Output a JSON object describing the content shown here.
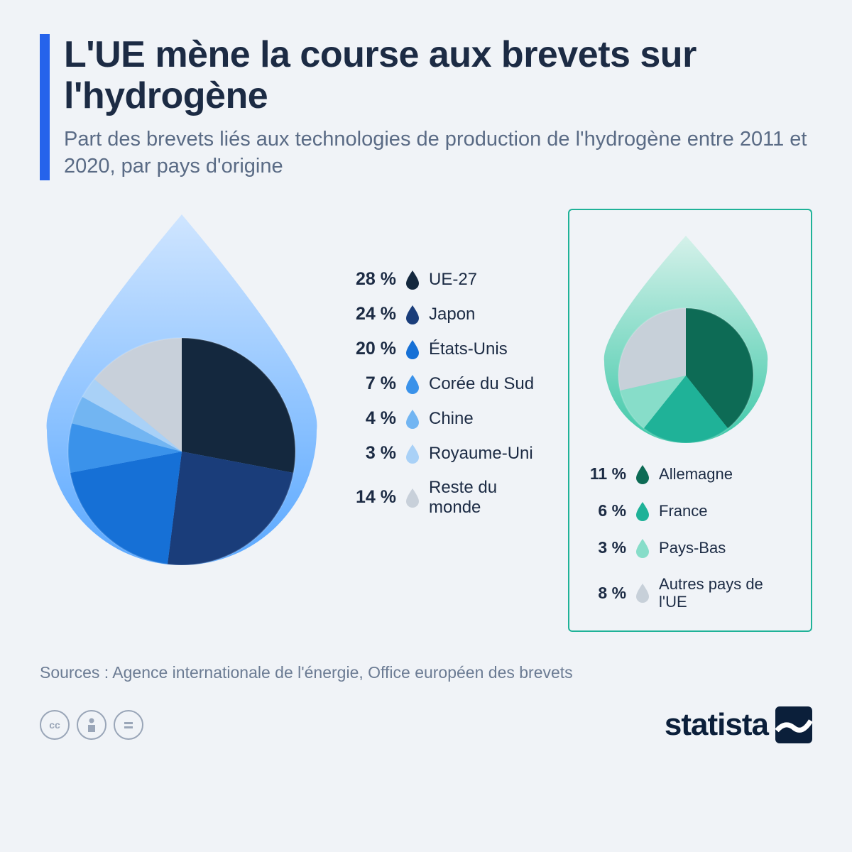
{
  "header": {
    "title": "L'UE mène la course aux brevets sur l'hydrogène",
    "subtitle": "Part des brevets liés aux technologies de production de l'hydrogène entre 2011 et 2020, par pays d'origine"
  },
  "main_chart": {
    "type": "pie",
    "drop_gradient": [
      "#cfe5ff",
      "#5aa8ff"
    ],
    "slices": [
      {
        "label": "UE-27",
        "value": 28,
        "color": "#14283e"
      },
      {
        "label": "Japon",
        "value": 24,
        "color": "#1a3d7a"
      },
      {
        "label": "États-Unis",
        "value": 20,
        "color": "#1670d6"
      },
      {
        "label": "Corée du Sud",
        "value": 7,
        "color": "#3a92ea"
      },
      {
        "label": "Chine",
        "value": 4,
        "color": "#72b5f2"
      },
      {
        "label": "Royaume-Uni",
        "value": 3,
        "color": "#a9d1f7"
      },
      {
        "label": "Reste du monde",
        "value": 14,
        "color": "#c8d0da"
      }
    ],
    "pct_suffix": " %"
  },
  "breakout_chart": {
    "type": "pie",
    "drop_gradient": [
      "#d5f1ea",
      "#3ec8a8"
    ],
    "border_color": "#1fb298",
    "slices": [
      {
        "label": "Allemagne",
        "value": 11,
        "color": "#0d6b55"
      },
      {
        "label": "France",
        "value": 6,
        "color": "#1fb298"
      },
      {
        "label": "Pays-Bas",
        "value": 3,
        "color": "#87ddc9"
      },
      {
        "label": "Autres pays de l'UE",
        "value": 8,
        "color": "#c7d0d9"
      }
    ],
    "pct_suffix": " %"
  },
  "sources": "Sources : Agence internationale de l'énergie, Office européen des brevets",
  "footer": {
    "brand": "statista"
  },
  "styling": {
    "background_color": "#f0f3f7",
    "accent_bar_color": "#2563eb",
    "title_color": "#1c2b44",
    "subtitle_color": "#5a6b85",
    "title_fontsize": 52,
    "subtitle_fontsize": 29,
    "legend_pct_fontsize": 25,
    "legend_label_fontsize": 24
  }
}
